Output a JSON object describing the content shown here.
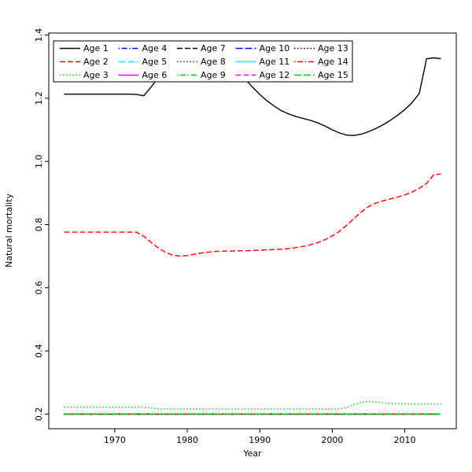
{
  "chart_data": {
    "type": "line",
    "title": "",
    "xlabel": "Year",
    "ylabel": "Natural mortality",
    "x_ticks": [
      1970,
      1980,
      1990,
      2000,
      2010
    ],
    "y_ticks": [
      0.2,
      0.4,
      0.6,
      0.8,
      1.0,
      1.2,
      1.4
    ],
    "xlim": [
      1960.9,
      2017.1
    ],
    "ylim": [
      0.1536,
      1.4064
    ],
    "grid": false,
    "legend": {
      "position": "topleft",
      "ncol": 5,
      "nrow": 3
    },
    "x": [
      1963,
      1964,
      1965,
      1966,
      1967,
      1968,
      1969,
      1970,
      1971,
      1972,
      1973,
      1974,
      1975,
      1976,
      1977,
      1978,
      1979,
      1980,
      1981,
      1982,
      1983,
      1984,
      1985,
      1986,
      1987,
      1988,
      1989,
      1990,
      1991,
      1992,
      1993,
      1994,
      1995,
      1996,
      1997,
      1998,
      1999,
      2000,
      2001,
      2002,
      2003,
      2004,
      2005,
      2006,
      2007,
      2008,
      2009,
      2010,
      2011,
      2012,
      2013,
      2014,
      2015
    ],
    "series": [
      {
        "name": "Age 1",
        "color": "#000000",
        "linetype": "solid",
        "values": [
          1.213,
          1.213,
          1.213,
          1.213,
          1.213,
          1.213,
          1.213,
          1.213,
          1.213,
          1.213,
          1.212,
          1.208,
          1.235,
          1.265,
          1.296,
          1.322,
          1.342,
          1.354,
          1.359,
          1.36,
          1.357,
          1.347,
          1.33,
          1.309,
          1.285,
          1.26,
          1.235,
          1.212,
          1.192,
          1.175,
          1.16,
          1.15,
          1.142,
          1.136,
          1.13,
          1.122,
          1.112,
          1.1,
          1.09,
          1.083,
          1.082,
          1.086,
          1.094,
          1.104,
          1.116,
          1.13,
          1.146,
          1.164,
          1.186,
          1.215,
          1.325,
          1.328,
          1.325
        ]
      },
      {
        "name": "Age 2",
        "color": "#FF0000",
        "linetype": "dashed",
        "values": [
          0.776,
          0.776,
          0.776,
          0.776,
          0.776,
          0.776,
          0.776,
          0.776,
          0.776,
          0.776,
          0.776,
          0.763,
          0.744,
          0.726,
          0.712,
          0.703,
          0.7,
          0.702,
          0.706,
          0.71,
          0.713,
          0.715,
          0.716,
          0.716,
          0.717,
          0.717,
          0.718,
          0.719,
          0.72,
          0.721,
          0.722,
          0.724,
          0.727,
          0.731,
          0.736,
          0.743,
          0.752,
          0.764,
          0.779,
          0.798,
          0.819,
          0.84,
          0.857,
          0.868,
          0.875,
          0.881,
          0.887,
          0.894,
          0.903,
          0.915,
          0.93,
          0.958,
          0.96
        ]
      },
      {
        "name": "Age 3",
        "color": "#00CD00",
        "linetype": "dotted",
        "values": [
          0.222,
          0.222,
          0.222,
          0.222,
          0.222,
          0.222,
          0.222,
          0.222,
          0.222,
          0.222,
          0.222,
          0.222,
          0.219,
          0.216,
          0.216,
          0.216,
          0.216,
          0.216,
          0.216,
          0.216,
          0.216,
          0.216,
          0.216,
          0.216,
          0.216,
          0.216,
          0.216,
          0.216,
          0.216,
          0.216,
          0.216,
          0.216,
          0.216,
          0.216,
          0.216,
          0.216,
          0.216,
          0.216,
          0.216,
          0.221,
          0.23,
          0.237,
          0.24,
          0.238,
          0.236,
          0.234,
          0.233,
          0.233,
          0.232,
          0.232,
          0.232,
          0.232,
          0.232
        ]
      },
      {
        "name": "Age 4",
        "color": "#0000FF",
        "linetype": "dotdash",
        "constant": 0.2
      },
      {
        "name": "Age 5",
        "color": "#00FFFF",
        "linetype": "longdash",
        "constant": 0.2
      },
      {
        "name": "Age 6",
        "color": "#FF00FF",
        "linetype": "solid",
        "constant": 0.2
      },
      {
        "name": "Age 7",
        "color": "#000000",
        "linetype": "dashed",
        "constant": 0.2
      },
      {
        "name": "Age 8",
        "color": "#FF0000",
        "linetype": "dotted",
        "constant": 0.2
      },
      {
        "name": "Age 9",
        "color": "#00CD00",
        "linetype": "dotdash",
        "constant": 0.2
      },
      {
        "name": "Age 10",
        "color": "#0000FF",
        "linetype": "longdash",
        "constant": 0.2
      },
      {
        "name": "Age 11",
        "color": "#00FFFF",
        "linetype": "solid",
        "constant": 0.2
      },
      {
        "name": "Age 12",
        "color": "#FF00FF",
        "linetype": "dashed",
        "constant": 0.2
      },
      {
        "name": "Age 13",
        "color": "#000000",
        "linetype": "dotted",
        "constant": 0.2
      },
      {
        "name": "Age 14",
        "color": "#FF0000",
        "linetype": "dotdash",
        "constant": 0.2
      },
      {
        "name": "Age 15",
        "color": "#00CD00",
        "linetype": "longdash",
        "constant": 0.2
      }
    ]
  }
}
